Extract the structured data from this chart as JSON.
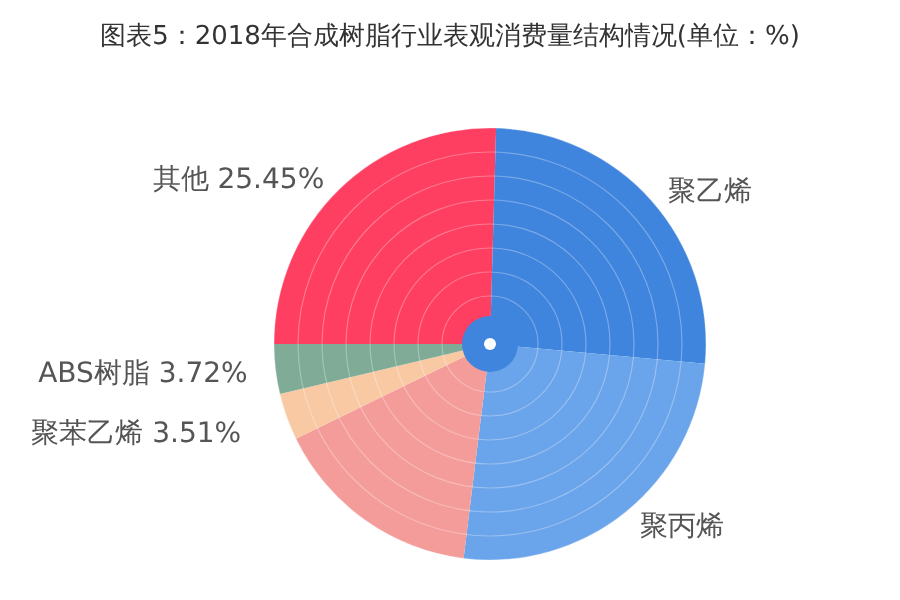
{
  "chart_data": {
    "type": "pie",
    "title": "图表5：2018年合成树脂行业表观消费量结构情况(单位：%)",
    "grid": true,
    "categories": [
      "其他",
      "聚乙烯",
      "聚丙烯",
      null,
      "聚苯乙烯",
      "ABS树脂"
    ],
    "values": [
      25.45,
      26.0,
      25.5,
      15.82,
      3.51,
      3.72
    ],
    "value_labels": [
      "25.45%",
      null,
      null,
      null,
      "3.51%",
      "3.72%"
    ],
    "colors": [
      "#fe3f62",
      "#3f84dd",
      "#6aa4ea",
      "#f49c9a",
      "#f9c9a3",
      "#7fab97"
    ]
  }
}
